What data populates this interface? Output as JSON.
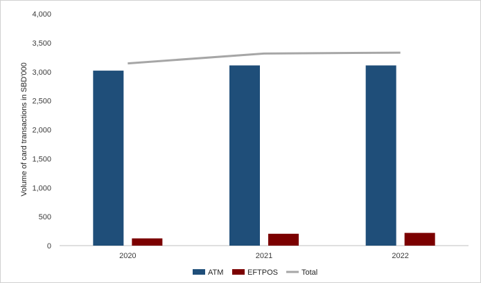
{
  "chart_data": {
    "type": "bar",
    "title": "",
    "xlabel": "",
    "ylabel": "Volume of card transactions in SBD'000",
    "categories": [
      "2020",
      "2021",
      "2022"
    ],
    "ylim": [
      0,
      4000
    ],
    "yticks": [
      0,
      500,
      1000,
      1500,
      2000,
      2500,
      3000,
      3500,
      4000
    ],
    "ytick_labels": [
      "0",
      "500",
      "1,000",
      "1,500",
      "2,000",
      "2,500",
      "3,000",
      "3,500",
      "4,000"
    ],
    "grid": false,
    "legend_position": "bottom",
    "series": [
      {
        "name": "ATM",
        "type": "bar",
        "color": "#1f4e79",
        "values": [
          3020,
          3110,
          3110
        ]
      },
      {
        "name": "EFTPOS",
        "type": "bar",
        "color": "#7b0000",
        "values": [
          125,
          205,
          220
        ]
      },
      {
        "name": "Total",
        "type": "line",
        "color": "#a6a6a6",
        "values": [
          3145,
          3315,
          3330
        ]
      }
    ]
  }
}
